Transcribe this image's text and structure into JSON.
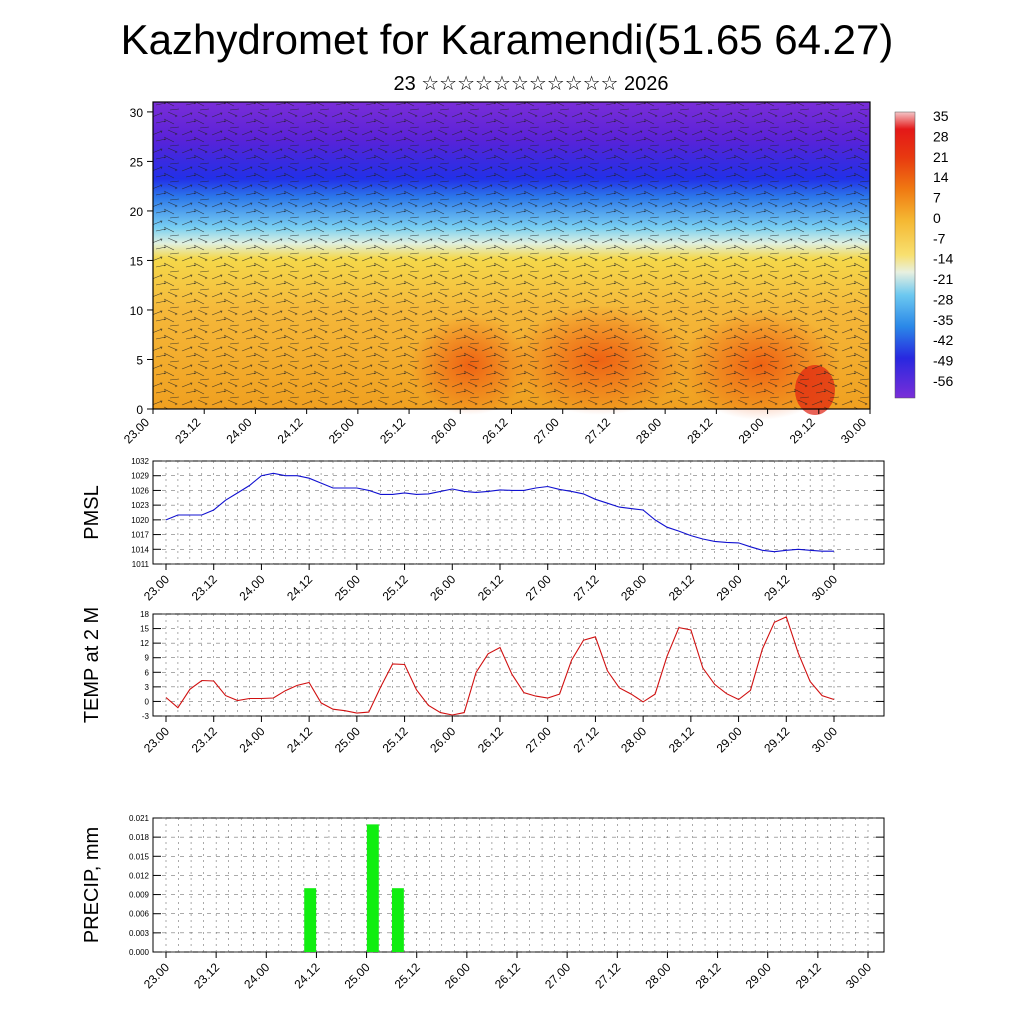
{
  "title": "Kazhydromet for Karamendi(51.65 64.27)",
  "subtitle": "23 ☆☆☆☆☆☆☆☆☆☆☆ 2026",
  "time_labels": [
    "23.00",
    "23.12",
    "24.00",
    "24.12",
    "25.00",
    "25.12",
    "26.00",
    "26.12",
    "27.00",
    "27.12",
    "28.00",
    "28.12",
    "29.00",
    "29.12",
    "30.00"
  ],
  "chart_data": [
    {
      "type": "heatmap",
      "name": "cross-section",
      "ylim": [
        0,
        31
      ],
      "yticks": [
        "0",
        "5",
        "10",
        "15",
        "20",
        "25",
        "30"
      ],
      "colorbar_labels": [
        "35",
        "28",
        "21",
        "14",
        "7",
        "0",
        "-7",
        "-14",
        "-21",
        "-28",
        "-35",
        "-42",
        "-49",
        "-56"
      ],
      "colors": {
        "top": "#6a1fd6",
        "band": "#2a2ae0",
        "mid": "#40b8f0",
        "warm": "#f5c23a",
        "hot": "#ee6a10"
      }
    },
    {
      "type": "line",
      "name": "PMSL",
      "ylabel": "PMSL",
      "ylim": [
        1011,
        1032
      ],
      "yticks": [
        "1032",
        "1029",
        "1026",
        "1023",
        "1020",
        "1017",
        "1014",
        "1011"
      ],
      "color": "#1010d0",
      "values": [
        1020,
        1021,
        1021,
        1021,
        1022,
        1024,
        1025.5,
        1027,
        1029,
        1029.5,
        1029,
        1029,
        1028.5,
        1027.5,
        1026.5,
        1026.5,
        1026.5,
        1026,
        1025.2,
        1025.2,
        1025.5,
        1025.2,
        1025.3,
        1025.8,
        1026.3,
        1025.8,
        1025.6,
        1025.8,
        1026.1,
        1026,
        1026,
        1026.5,
        1026.8,
        1026.2,
        1025.8,
        1025.3,
        1024.2,
        1023.4,
        1022.6,
        1022.3,
        1022,
        1020,
        1018.5,
        1017.7,
        1016.8,
        1016.1,
        1015.6,
        1015.4,
        1015.3,
        1014.5,
        1013.8,
        1013.5,
        1013.8,
        1014,
        1013.8,
        1013.6,
        1013.6
      ]
    },
    {
      "type": "line",
      "name": "TEMP at 2 M",
      "ylabel": "TEMP at 2 M",
      "ylim": [
        -3,
        18
      ],
      "yticks": [
        "18",
        "15",
        "12",
        "9",
        "6",
        "3",
        "0",
        "-3"
      ],
      "color": "#d01010",
      "values": [
        0.8,
        -1.3,
        2.5,
        4.3,
        4.2,
        1.2,
        0.2,
        0.6,
        0.6,
        0.7,
        2.2,
        3.3,
        3.9,
        -0.3,
        -1.6,
        -1.9,
        -2.4,
        -2.2,
        3.0,
        7.7,
        7.6,
        2.4,
        -0.8,
        -2.3,
        -2.8,
        -2.3,
        6.0,
        9.8,
        11.1,
        5.6,
        1.8,
        1.1,
        0.7,
        1.5,
        8.5,
        12.6,
        13.3,
        6.3,
        2.8,
        1.5,
        -0.1,
        1.5,
        9.3,
        15.2,
        14.7,
        6.9,
        3.5,
        1.6,
        0.4,
        2.3,
        10.8,
        16.3,
        17.4,
        10.0,
        4.1,
        1.2,
        0.4
      ]
    },
    {
      "type": "bar",
      "name": "PRECIP, mm",
      "ylabel": "PRECIP, mm",
      "ylim": [
        0,
        0.021
      ],
      "yticks": [
        "0.021",
        "0.018",
        "0.015",
        "0.012",
        "0.009",
        "0.006",
        "0.003",
        "0.000"
      ],
      "color": "#10ee10",
      "bars": [
        {
          "t": 11.5,
          "value": 0.01
        },
        {
          "t": 16.5,
          "value": 0.02
        },
        {
          "t": 18.5,
          "value": 0.01
        }
      ]
    }
  ]
}
